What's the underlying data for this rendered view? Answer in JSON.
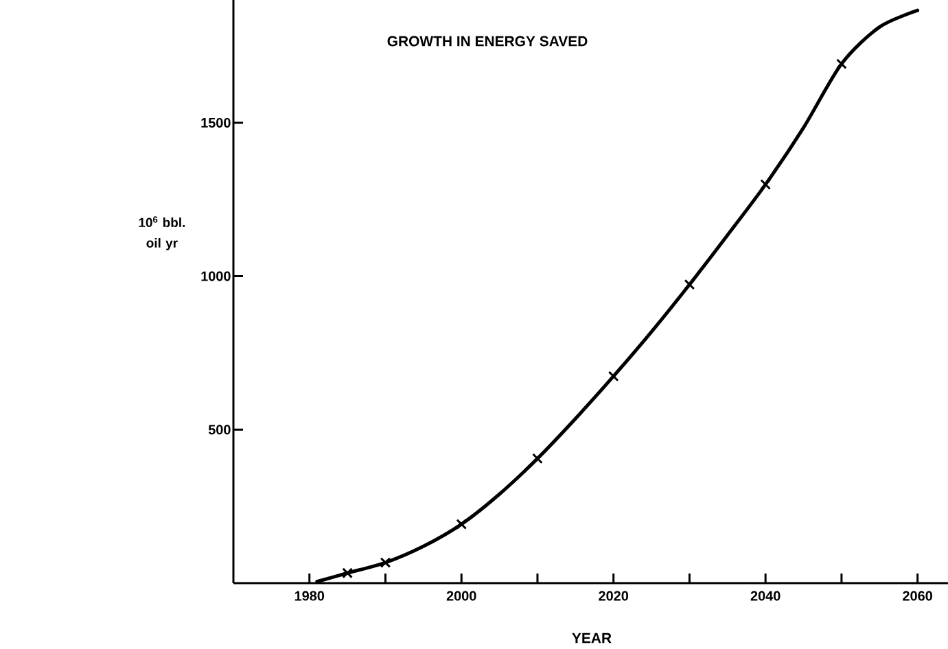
{
  "chart_data": {
    "type": "line",
    "title": "GROWTH IN ENERGY SAVED",
    "xlabel": "YEAR",
    "ylabel": "10$^{6}$ bbl. oil yr",
    "series": [
      {
        "type": "line",
        "color": "#000000",
        "x": [
          1981,
          1985,
          1990,
          1995,
          2000,
          2005,
          2010,
          2015,
          2020,
          2025,
          2030,
          2035,
          2040,
          2045,
          2050,
          2055,
          2060
        ],
        "values": [
          5,
          33,
          67,
          120,
          192,
          290,
          406,
          536,
          674,
          819,
          973,
          1134,
          1299,
          1484,
          1692,
          1812,
          1866
        ]
      },
      {
        "type": "scatter",
        "color": "#000000",
        "marker": "cross",
        "x": [
          1985,
          1990,
          2000,
          2010,
          2020,
          2030,
          2040,
          2050
        ],
        "values": [
          33,
          67,
          192,
          406,
          674,
          973,
          1299,
          1692
        ]
      }
    ],
    "xlim": [
      1970,
      2064
    ],
    "ylim": [
      0,
      1900
    ],
    "xticks": [
      1980,
      {
        "value": 1990,
        "label": null
      },
      2000,
      {
        "value": 2010,
        "label": null
      },
      2020,
      {
        "value": 2030,
        "label": null
      },
      2040,
      {
        "value": 2050,
        "label": null
      },
      2060
    ],
    "yticks": [
      500,
      1000,
      1500
    ]
  }
}
